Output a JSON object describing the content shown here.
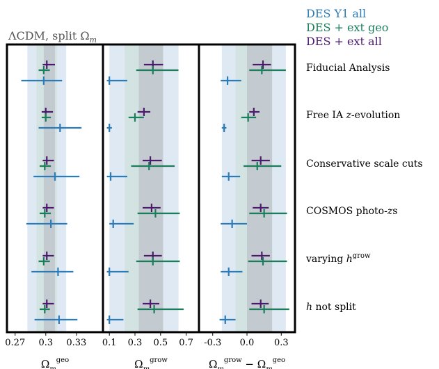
{
  "title": "ΛCDM, split Ω",
  "title_sub": "m",
  "legend": [
    {
      "label": "DES Y1 all",
      "color": "#2c7bb6"
    },
    {
      "label": "DES + ext geo",
      "color": "#1b7e5a"
    },
    {
      "label": "DES + ext all",
      "color": "#4b1a6b"
    }
  ],
  "row_labels": [
    {
      "text": "Fiducial Analysis"
    },
    {
      "text": "Free IA ",
      "math": "z",
      "after": "-evolution"
    },
    {
      "text": "Conservative scale cuts"
    },
    {
      "text": "COSMOS photo-",
      "math": "z",
      "after": "s"
    },
    {
      "text": "varying ",
      "math": "h",
      "sup": "grow"
    },
    {
      "text": "",
      "math": "h",
      "after": " not split"
    }
  ],
  "chart_data": [
    {
      "type": "errorbar",
      "xlabel": "Ω_m^geo",
      "xticks": [
        "0.27",
        "0.3",
        "0.33"
      ],
      "xlim": [
        0.262,
        0.356
      ],
      "bands": {
        "outer": [
          0.282,
          0.32
        ],
        "inner": [
          0.291,
          0.311
        ],
        "dark": [
          0.298,
          0.309
        ]
      },
      "series": [
        {
          "name": "DES + ext all",
          "values": [
            [
              0.301,
              0.297,
              0.309
            ],
            [
              0.3,
              0.296,
              0.307
            ],
            [
              0.301,
              0.297,
              0.308
            ],
            [
              0.301,
              0.297,
              0.308
            ],
            [
              0.301,
              0.297,
              0.308
            ],
            [
              0.301,
              0.297,
              0.308
            ]
          ]
        },
        {
          "name": "DES + ext geo",
          "values": [
            [
              0.298,
              0.293,
              0.304
            ],
            [
              0.3,
              0.296,
              0.305
            ],
            [
              0.299,
              0.294,
              0.305
            ],
            [
              0.299,
              0.294,
              0.305
            ],
            [
              0.298,
              0.293,
              0.304
            ],
            [
              0.299,
              0.294,
              0.304
            ]
          ]
        },
        {
          "name": "DES Y1 all",
          "values": [
            [
              0.298,
              0.276,
              0.316
            ],
            [
              0.314,
              0.293,
              0.335
            ],
            [
              0.309,
              0.288,
              0.333
            ],
            [
              0.305,
              0.281,
              0.321
            ],
            [
              0.312,
              0.286,
              0.327
            ],
            [
              0.313,
              0.289,
              0.331
            ]
          ]
        }
      ]
    },
    {
      "type": "errorbar",
      "xlabel": "Ω_m^grow",
      "xticks": [
        "0.1",
        "0.3",
        "0.5",
        "0.7"
      ],
      "xlim": [
        0.05,
        0.8
      ],
      "bands": {
        "outer": [
          0.1,
          0.64
        ],
        "inner": [
          0.22,
          0.52
        ],
        "dark": [
          0.33,
          0.52
        ]
      },
      "series": [
        {
          "name": "DES + ext all",
          "values": [
            [
              0.44,
              0.37,
              0.52
            ],
            [
              0.37,
              0.32,
              0.42
            ],
            [
              0.42,
              0.36,
              0.51
            ],
            [
              0.43,
              0.36,
              0.5
            ],
            [
              0.44,
              0.37,
              0.51
            ],
            [
              0.42,
              0.36,
              0.49
            ]
          ]
        },
        {
          "name": "DES + ext geo",
          "values": [
            [
              0.44,
              0.31,
              0.64
            ],
            [
              0.3,
              0.25,
              0.37
            ],
            [
              0.41,
              0.27,
              0.61
            ],
            [
              0.46,
              0.32,
              0.65
            ],
            [
              0.44,
              0.31,
              0.65
            ],
            [
              0.45,
              0.32,
              0.68
            ]
          ]
        },
        {
          "name": "DES Y1 all",
          "values": [
            [
              0.1,
              0.08,
              0.24
            ],
            [
              0.1,
              0.08,
              0.12
            ],
            [
              0.11,
              0.08,
              0.24
            ],
            [
              0.13,
              0.1,
              0.29
            ],
            [
              0.1,
              0.08,
              0.25
            ],
            [
              0.1,
              0.08,
              0.21
            ]
          ]
        }
      ]
    },
    {
      "type": "errorbar",
      "xlabel": "Ω_m^grow − Ω_m^geo",
      "xticks": [
        "-0.3",
        "0.0",
        "0.3"
      ],
      "xlim": [
        -0.42,
        0.42
      ],
      "bands": {
        "outer": [
          -0.22,
          0.34
        ],
        "inner": [
          -0.1,
          0.22
        ],
        "dark": [
          0.0,
          0.22
        ]
      },
      "series": [
        {
          "name": "DES + ext all",
          "values": [
            [
              0.14,
              0.05,
              0.21
            ],
            [
              0.06,
              0.02,
              0.11
            ],
            [
              0.12,
              0.04,
              0.2
            ],
            [
              0.12,
              0.05,
              0.19
            ],
            [
              0.13,
              0.04,
              0.2
            ],
            [
              0.12,
              0.04,
              0.19
            ]
          ]
        },
        {
          "name": "DES + ext geo",
          "values": [
            [
              0.13,
              0.02,
              0.34
            ],
            [
              0.01,
              -0.05,
              0.08
            ],
            [
              0.09,
              -0.03,
              0.3
            ],
            [
              0.15,
              0.02,
              0.35
            ],
            [
              0.14,
              0.01,
              0.35
            ],
            [
              0.15,
              0.02,
              0.37
            ]
          ]
        },
        {
          "name": "DES Y1 all",
          "values": [
            [
              -0.17,
              -0.23,
              -0.05
            ],
            [
              -0.2,
              -0.22,
              -0.18
            ],
            [
              -0.16,
              -0.22,
              -0.06
            ],
            [
              -0.13,
              -0.23,
              0.0
            ],
            [
              -0.16,
              -0.23,
              -0.04
            ],
            [
              -0.19,
              -0.24,
              -0.1
            ]
          ]
        }
      ]
    }
  ]
}
